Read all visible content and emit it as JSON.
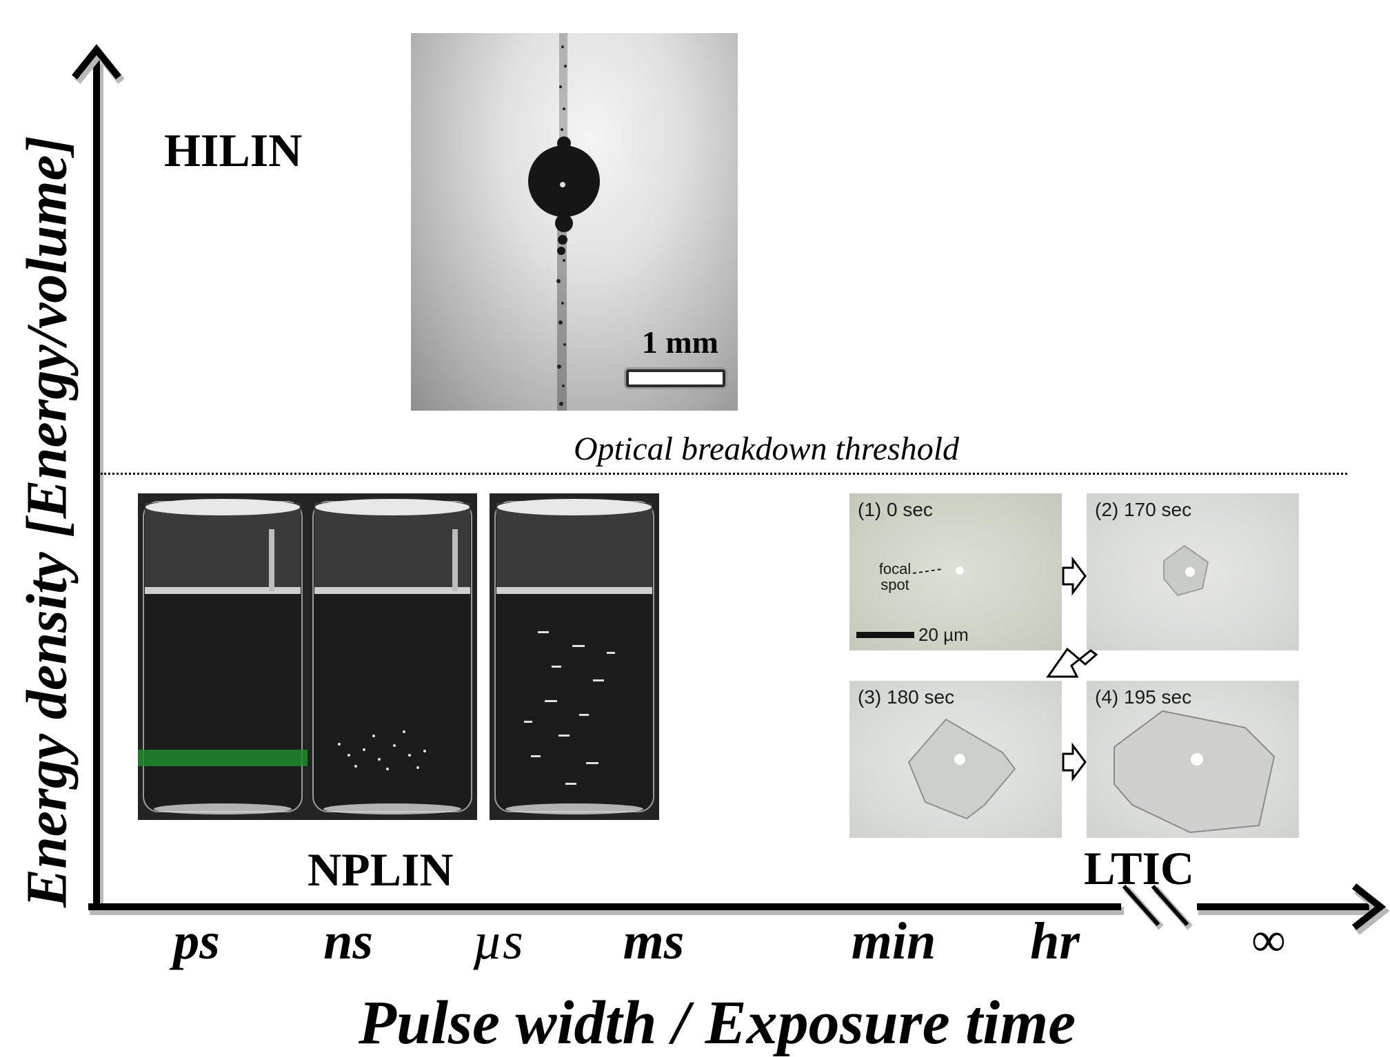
{
  "axes": {
    "y_label": "Energy density [Energy/volume]",
    "x_label": "Pulse width / Exposure time",
    "x_ticks": [
      "ps",
      "ns",
      "µs",
      "ms",
      "min",
      "hr",
      "∞"
    ]
  },
  "regions": {
    "hilin": "HILIN",
    "nplin": "NPLIN",
    "ltic": "LTIC"
  },
  "threshold": {
    "label": "Optical breakdown threshold"
  },
  "hilin_image": {
    "scale_text": "1 mm"
  },
  "ltic_panels": {
    "p1": {
      "caption": "(1) 0 sec",
      "focal_label": "focal spot",
      "scale_text": "20 µm"
    },
    "p2": {
      "caption": "(2) 170 sec"
    },
    "p3": {
      "caption": "(3) 180 sec"
    },
    "p4": {
      "caption": "(4) 195 sec"
    }
  },
  "colors": {
    "axis": "#000000",
    "axis_shadow": "#b8b8b8",
    "green_band": "#1f8a2a"
  }
}
